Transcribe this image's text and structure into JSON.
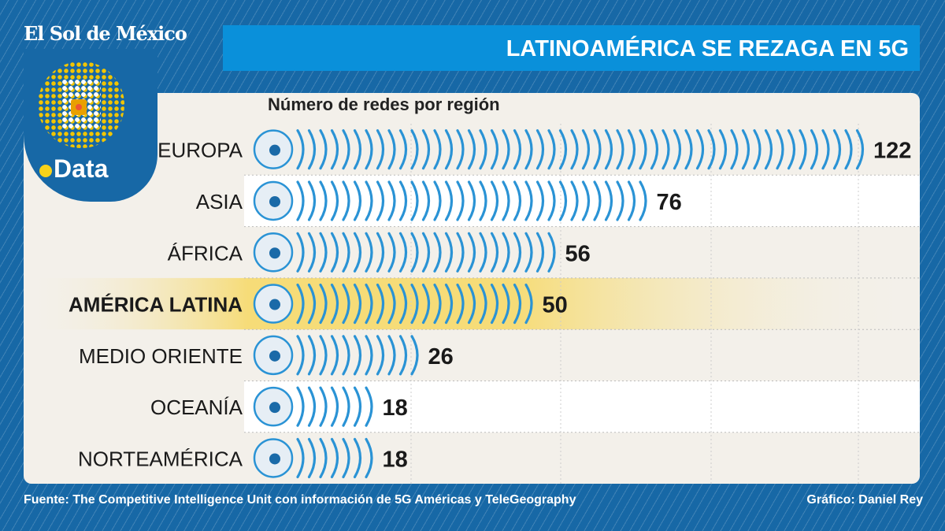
{
  "brand": {
    "logo": "El Sol de México",
    "section": "Data"
  },
  "header": {
    "title": "LATINOAMÉRICA SE REZAGA EN 5G"
  },
  "colors": {
    "background": "#1768a6",
    "title_bar": "#0a90da",
    "arc": "#2a93d5",
    "highlight": "#f6dc78",
    "panel": "#f3f0ea"
  },
  "chart_data": {
    "type": "bar",
    "title": "Número de redes por región",
    "categories": [
      "EUROPA",
      "ASIA",
      "ÁFRICA",
      "AMÉRICA LATINA",
      "MEDIO ORIENTE",
      "OCEANÍA",
      "NORTEAMÉRICA"
    ],
    "values": [
      122,
      76,
      56,
      50,
      26,
      18,
      18
    ],
    "highlight": "AMÉRICA LATINA",
    "orientation": "horizontal",
    "grid": true
  },
  "footer": {
    "source": "Fuente: The Competitive Intelligence Unit con información de 5G Américas y TeleGeography",
    "credit": "Gráfico: Daniel Rey"
  }
}
